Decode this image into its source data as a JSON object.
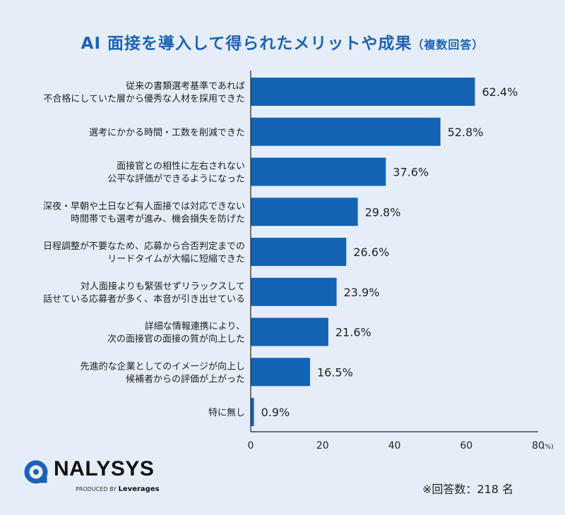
{
  "title": "AI 面接を導入して得られたメリットや成果",
  "title_note": "（複数回答）",
  "colors": {
    "bar": "#1463b4",
    "title": "#1d62b5",
    "background": "#e5eef8"
  },
  "chart_data": {
    "type": "bar",
    "orientation": "horizontal",
    "categories": [
      [
        "従来の書類選考基準であれば",
        "不合格にしていた層から優秀な人材を採用できた"
      ],
      [
        "選考にかかる時間・工数を削減できた"
      ],
      [
        "面接官との相性に左右されない",
        "公平な評価ができるようになった"
      ],
      [
        "深夜・早朝や土日など有人面接では対応できない",
        "時間帯でも選考が進み、機会損失を防げた"
      ],
      [
        "日程調整が不要なため、応募から合否判定までの",
        "リードタイムが大幅に短縮できた"
      ],
      [
        "対人面接よりも緊張せずリラックスして",
        "話せている応募者が多く、本音が引き出せている"
      ],
      [
        "詳細な情報連携により、",
        "次の面接官の面接の質が向上した"
      ],
      [
        "先進的な企業としてのイメージが向上し",
        "候補者からの評価が上がった"
      ],
      [
        "特に無し"
      ]
    ],
    "values": [
      62.4,
      52.8,
      37.6,
      29.8,
      26.6,
      23.9,
      21.6,
      16.5,
      0.9
    ],
    "data_labels": [
      "62.4%",
      "52.8%",
      "37.6%",
      "29.8%",
      "26.6%",
      "23.9%",
      "21.6%",
      "16.5%",
      "0.9%"
    ],
    "xlim": [
      0,
      80
    ],
    "xticks": [
      "0",
      "20",
      "40",
      "60",
      "80"
    ],
    "xunit": "(%)",
    "grid": false
  },
  "footer": {
    "respondents": "※回答数：218 名"
  },
  "logo": {
    "name": "NALYSYS",
    "produced_by": "PRODUCED BY",
    "company": "Leverages"
  }
}
